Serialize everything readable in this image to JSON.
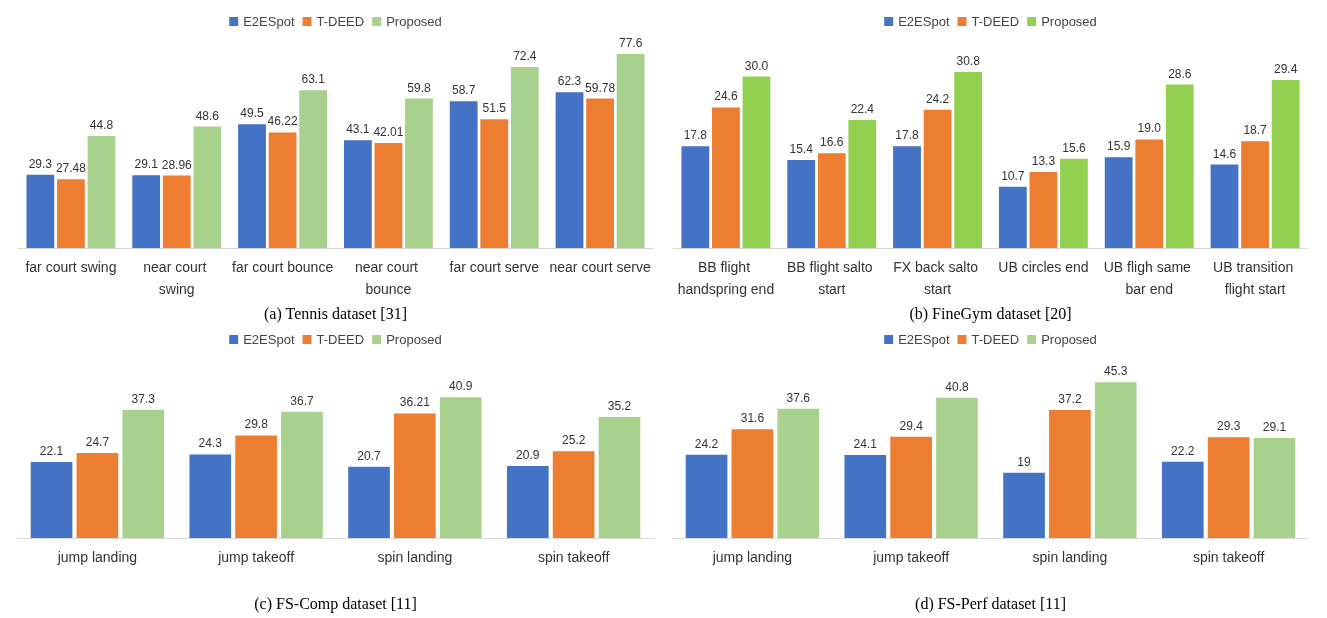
{
  "chart_data": [
    {
      "type": "bar",
      "title": "(a) Tennis dataset [31]",
      "categories": [
        "far court swing",
        "near court swing",
        "far court bounce",
        "near court bounce",
        "far court serve",
        "near court serve"
      ],
      "series": [
        {
          "name": "E2ESpot",
          "color": "#4472c4",
          "values": [
            29.3,
            29.1,
            49.5,
            43.1,
            58.7,
            62.3
          ]
        },
        {
          "name": "T-DEED",
          "color": "#ed7d31",
          "values": [
            27.48,
            28.96,
            46.22,
            42.01,
            51.5,
            59.78
          ]
        },
        {
          "name": "Proposed",
          "color": "#a9d18e",
          "values": [
            44.8,
            48.6,
            63.1,
            59.8,
            72.4,
            77.6
          ]
        }
      ],
      "data_labels": true,
      "legend": "top",
      "grid": false
    },
    {
      "type": "bar",
      "title": "(b) FineGym dataset [20]",
      "categories": [
        "BB flight handspring end",
        "BB flight salto start",
        "FX back salto start",
        "UB circles end",
        "UB fligh same bar end",
        "UB transition flight start"
      ],
      "series": [
        {
          "name": "E2ESpot",
          "color": "#4472c4",
          "values": [
            17.8,
            15.4,
            17.8,
            10.7,
            15.9,
            14.6
          ],
          "value_labels": [
            "17.8",
            "15.4",
            "17.8",
            "10.7",
            "15.9",
            "14.6"
          ]
        },
        {
          "name": "T-DEED",
          "color": "#ed7d31",
          "values": [
            24.6,
            16.6,
            24.2,
            13.3,
            19.0,
            18.7
          ],
          "value_labels": [
            "24.6",
            "16.6",
            "24.2",
            "13.3",
            "19.0",
            "18.7"
          ]
        },
        {
          "name": "Proposed",
          "color": "#92d050",
          "values": [
            30.0,
            22.4,
            30.8,
            15.6,
            28.6,
            29.4
          ],
          "value_labels": [
            "30.0",
            "22.4",
            "30.8",
            "15.6",
            "28.6",
            "29.4"
          ]
        }
      ],
      "legend": "top",
      "grid": false
    },
    {
      "type": "bar",
      "title": "(c) FS-Comp dataset [11]",
      "categories": [
        "jump landing",
        "jump takeoff",
        "spin landing",
        "spin takeoff"
      ],
      "series": [
        {
          "name": "E2ESpot",
          "color": "#4472c4",
          "values": [
            22.1,
            24.3,
            20.7,
            20.9
          ]
        },
        {
          "name": "T-DEED",
          "color": "#ed7d31",
          "values": [
            24.7,
            29.8,
            36.21,
            25.2
          ]
        },
        {
          "name": "Proposed",
          "color": "#a9d18e",
          "values": [
            37.3,
            36.7,
            40.9,
            35.2
          ]
        }
      ],
      "data_labels": true,
      "legend": "top",
      "grid": false
    },
    {
      "type": "bar",
      "title": "(d) FS-Perf dataset [11]",
      "categories": [
        "jump landing",
        "jump takeoff",
        "spin landing",
        "spin takeoff"
      ],
      "series": [
        {
          "name": "E2ESpot",
          "color": "#4472c4",
          "values": [
            24.2,
            24.1,
            19,
            22.2
          ]
        },
        {
          "name": "T-DEED",
          "color": "#ed7d31",
          "values": [
            31.6,
            29.4,
            37.2,
            29.3
          ]
        },
        {
          "name": "Proposed",
          "color": "#a9d18e",
          "values": [
            37.6,
            40.8,
            45.3,
            29.1
          ]
        }
      ],
      "data_labels": true,
      "legend": "top",
      "grid": false
    }
  ]
}
